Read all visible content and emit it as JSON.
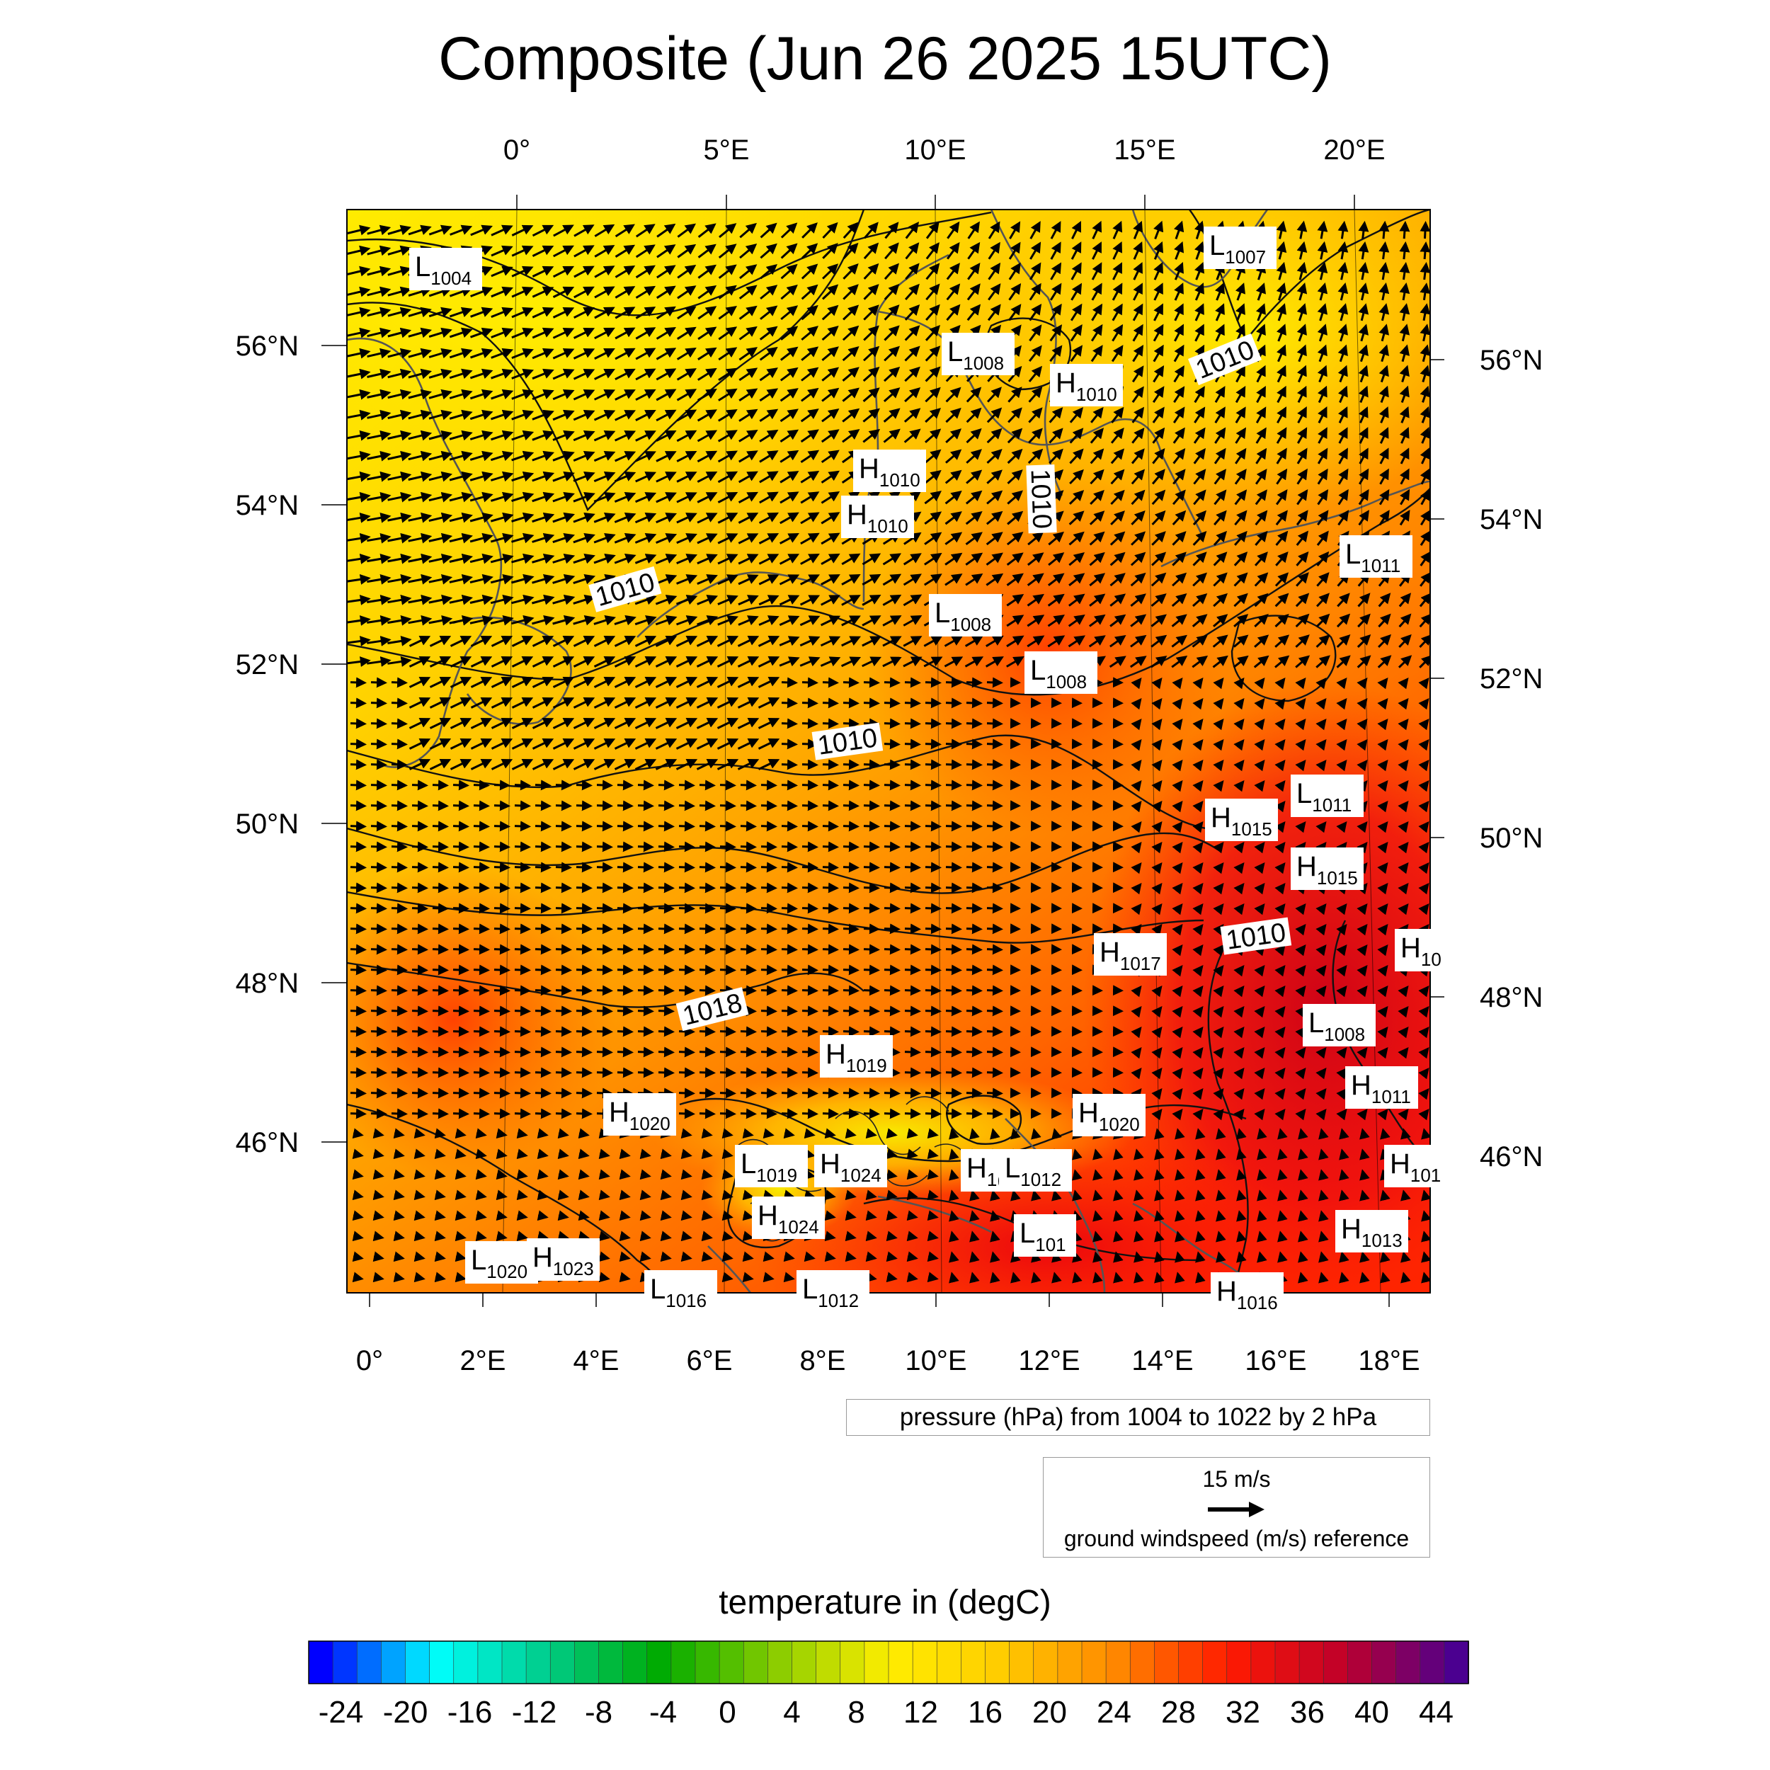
{
  "title": "Composite (Jun 26 2025 15UTC)",
  "top_axis_labels": [
    "0°",
    "5°E",
    "10°E",
    "15°E",
    "20°E"
  ],
  "bottom_axis_labels": [
    "0°",
    "2°E",
    "4°E",
    "6°E",
    "8°E",
    "10°E",
    "12°E",
    "14°E",
    "16°E",
    "18°E"
  ],
  "left_axis_labels": [
    "56°N",
    "54°N",
    "52°N",
    "50°N",
    "48°N",
    "46°N"
  ],
  "right_axis_labels": [
    "56°N",
    "54°N",
    "52°N",
    "50°N",
    "48°N",
    "46°N"
  ],
  "contour_labels": [
    "1010",
    "1010",
    "1010",
    "1010",
    "1010",
    "1018"
  ],
  "pressure_centers": [
    {
      "type": "L",
      "value": "1004"
    },
    {
      "type": "L",
      "value": "1007"
    },
    {
      "type": "L",
      "value": "1008"
    },
    {
      "type": "H",
      "value": "1010"
    },
    {
      "type": "H",
      "value": "1010"
    },
    {
      "type": "H",
      "value": "1010"
    },
    {
      "type": "L",
      "value": "1008"
    },
    {
      "type": "L",
      "value": "1008"
    },
    {
      "type": "L",
      "value": "1011"
    },
    {
      "type": "L",
      "value": "1011"
    },
    {
      "type": "H",
      "value": "1015"
    },
    {
      "type": "H",
      "value": "1015"
    },
    {
      "type": "H",
      "value": "1017"
    },
    {
      "type": "H",
      "value": "10"
    },
    {
      "type": "L",
      "value": "1008"
    },
    {
      "type": "H",
      "value": "1019"
    },
    {
      "type": "H",
      "value": "1011"
    },
    {
      "type": "H",
      "value": "1020"
    },
    {
      "type": "H",
      "value": "1020"
    },
    {
      "type": "L",
      "value": "1019"
    },
    {
      "type": "H",
      "value": "1024"
    },
    {
      "type": "H",
      "value": "1("
    },
    {
      "type": "L",
      "value": "1012"
    },
    {
      "type": "H",
      "value": "101"
    },
    {
      "type": "H",
      "value": "1024"
    },
    {
      "type": "L",
      "value": "101"
    },
    {
      "type": "H",
      "value": "1013"
    },
    {
      "type": "L",
      "value": "1020"
    },
    {
      "type": "H",
      "value": "1023"
    },
    {
      "type": "L",
      "value": "1016"
    },
    {
      "type": "L",
      "value": "1012"
    },
    {
      "type": "H",
      "value": "1016"
    }
  ],
  "pressure_note": "pressure (hPa) from 1004 to 1022 by 2 hPa",
  "wind_reference": {
    "speed": "15 m/s",
    "label": "ground windspeed (m/s) reference"
  },
  "colorbar": {
    "title": "temperature in (degC)",
    "tick_labels": [
      "-24",
      "-20",
      "-16",
      "-12",
      "-8",
      "-4",
      "0",
      "4",
      "8",
      "12",
      "16",
      "20",
      "24",
      "28",
      "32",
      "36",
      "40",
      "44"
    ],
    "range": [
      -26,
      46
    ],
    "colors": [
      "#0000ff",
      "#00ffff",
      "#00cc88",
      "#00aa00",
      "#88cc00",
      "#ffee00",
      "#ffcc00",
      "#ff8800",
      "#ff1a00",
      "#c0002a",
      "#4b0090"
    ]
  }
}
